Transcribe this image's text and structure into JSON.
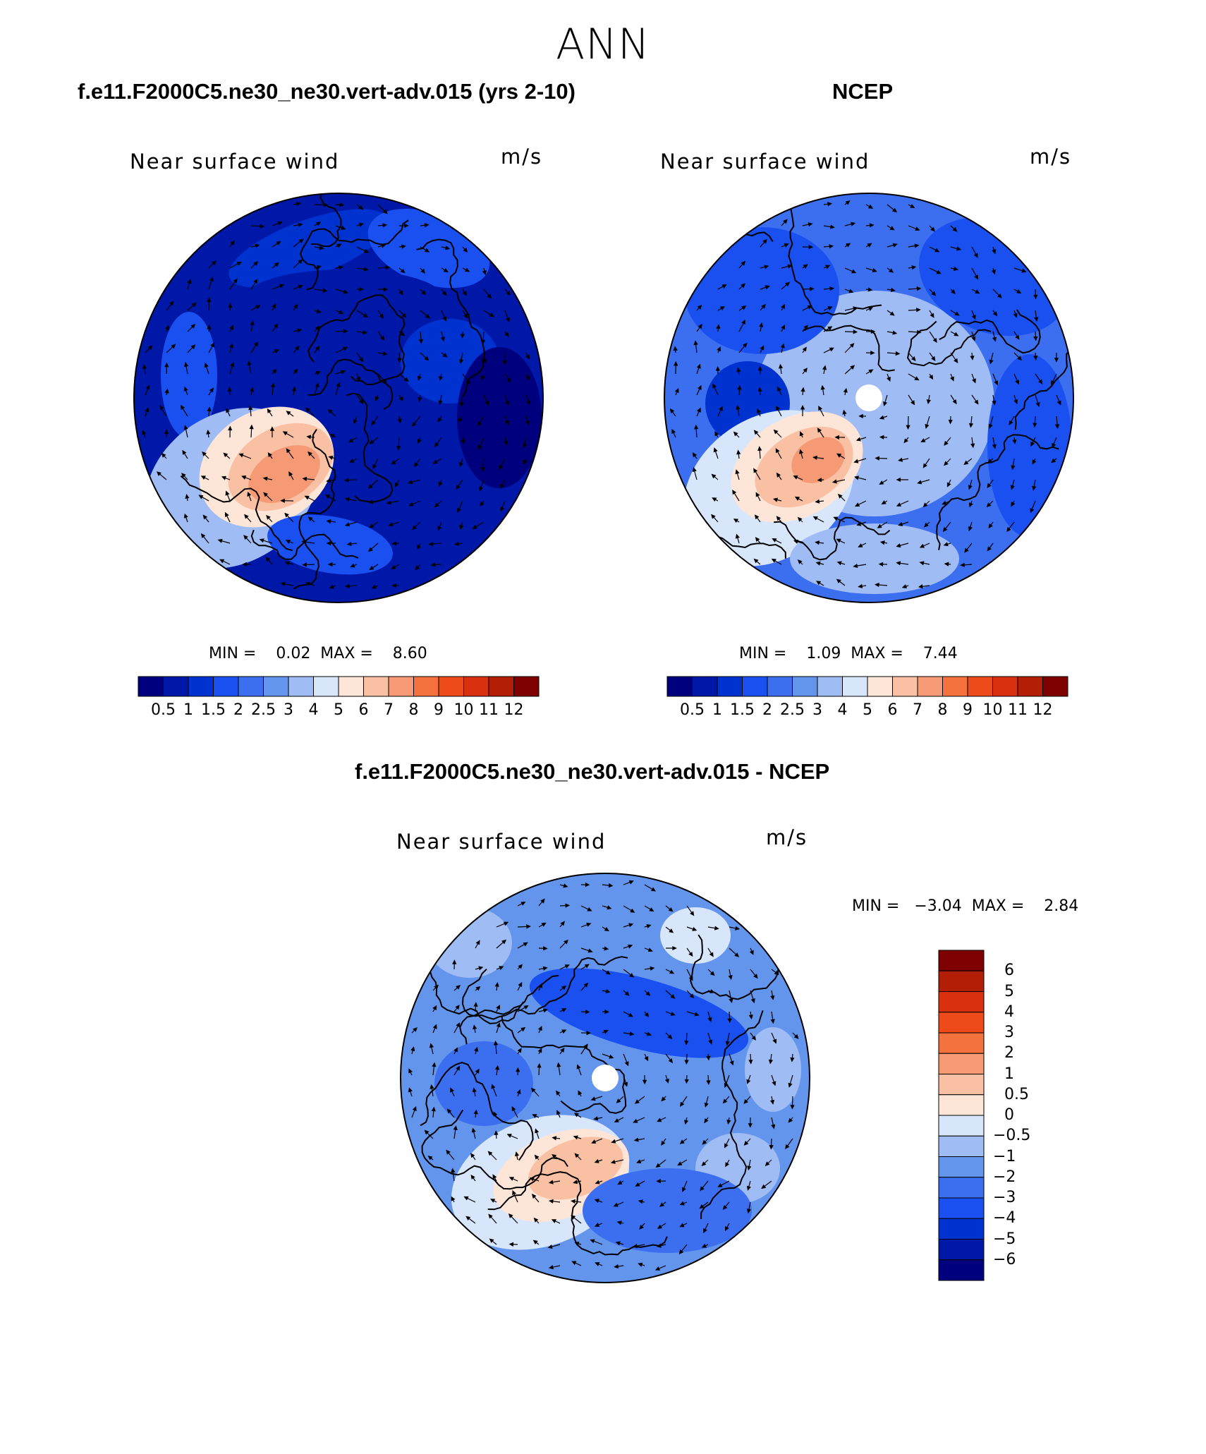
{
  "title": "ANN",
  "panels": [
    {
      "heading": "f.e11.F2000C5.ne30_ne30.vert-adv.015 (yrs 2-10)",
      "label": "Near surface wind",
      "units": "m/s",
      "stats": "MIN =    0.02  MAX =    8.60",
      "background_level": 1,
      "colorbar_ticks": [
        "0.5",
        "1",
        "1.5",
        "2",
        "2.5",
        "3",
        "4",
        "5",
        "6",
        "7",
        "8",
        "9",
        "10",
        "11",
        "12"
      ]
    },
    {
      "heading": "NCEP",
      "label": "Near surface wind",
      "units": "m/s",
      "stats": "MIN =    1.09  MAX =    7.44",
      "background_level": 4,
      "colorbar_ticks": [
        "0.5",
        "1",
        "1.5",
        "2",
        "2.5",
        "3",
        "4",
        "5",
        "6",
        "7",
        "8",
        "9",
        "10",
        "11",
        "12"
      ]
    },
    {
      "heading": "f.e11.F2000C5.ne30_ne30.vert-adv.015 - NCEP",
      "label": "Near surface wind",
      "units": "m/s",
      "stats": "MIN =   −3.04  MAX =    2.84",
      "background_level": 4,
      "colorbar_ticks": [
        "6",
        "5",
        "4",
        "3",
        "2",
        "1",
        "0.5",
        "0",
        "−0.5",
        "−1",
        "−2",
        "−3",
        "−4",
        "−5",
        "−6"
      ]
    }
  ],
  "colors": {
    "palette_16": [
      "#00007f",
      "#0018a8",
      "#0032d0",
      "#1a50f0",
      "#3c6ef0",
      "#6495ed",
      "#a0bcf5",
      "#d8e6fb",
      "#fde5d8",
      "#f9c0a4",
      "#f59a75",
      "#f4723d",
      "#ef4a1a",
      "#d93010",
      "#b21f06",
      "#7f0000"
    ],
    "diff_palette": [
      "#7f0000",
      "#b21f06",
      "#d93010",
      "#ef4a1a",
      "#f4723d",
      "#f59a75",
      "#f9c0a4",
      "#fde5d8",
      "#d8e6fb",
      "#a0bcf5",
      "#6495ed",
      "#3c6ef0",
      "#1a50f0",
      "#0032d0",
      "#0018a8",
      "#00007f"
    ]
  }
}
